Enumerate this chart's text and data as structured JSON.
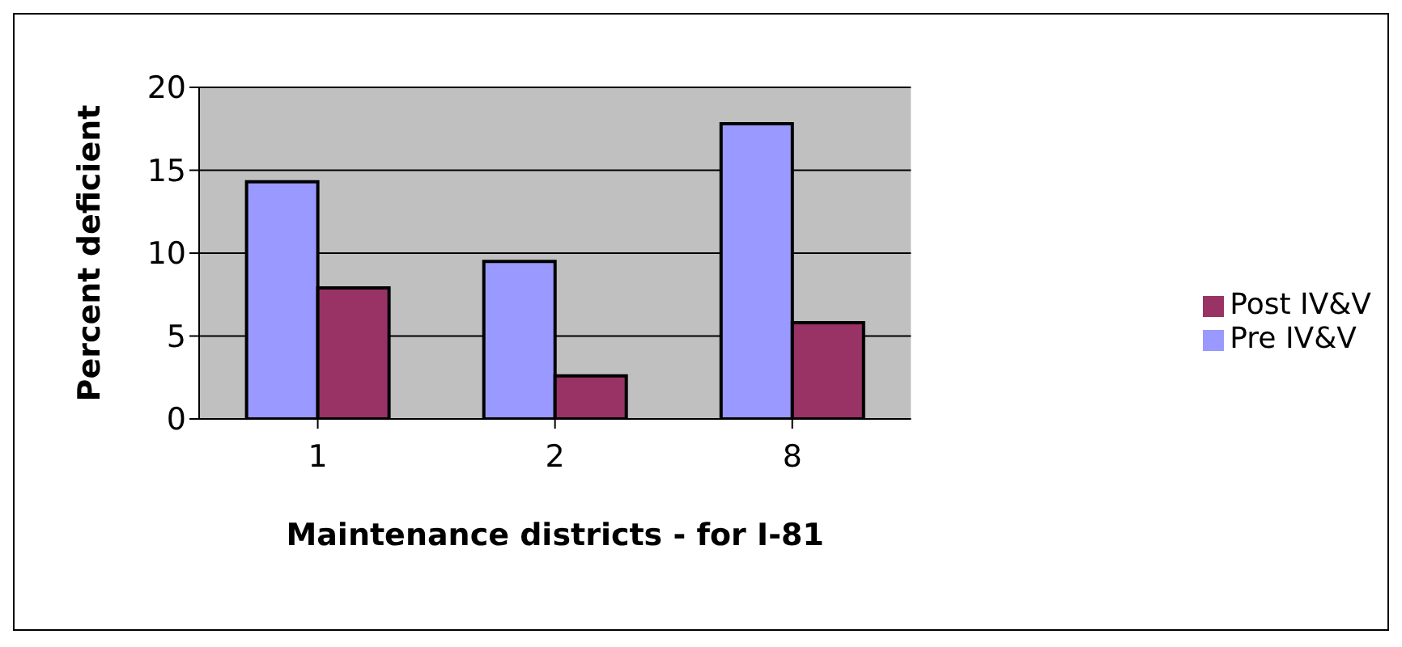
{
  "chart_data": {
    "type": "bar",
    "xlabel": "Maintenance districts - for I-81",
    "ylabel": "Percent deficient",
    "categories": [
      "1",
      "2",
      "8"
    ],
    "series": [
      {
        "name": "Pre IV&V",
        "color": "#9999ff",
        "values": [
          14.3,
          9.5,
          17.8
        ]
      },
      {
        "name": "Post IV&V",
        "color": "#993366",
        "values": [
          7.9,
          2.6,
          5.8
        ]
      }
    ],
    "ylim": [
      0,
      20
    ],
    "yticks": [
      0,
      5,
      10,
      15,
      20
    ],
    "grid": "y",
    "legend": "right"
  }
}
